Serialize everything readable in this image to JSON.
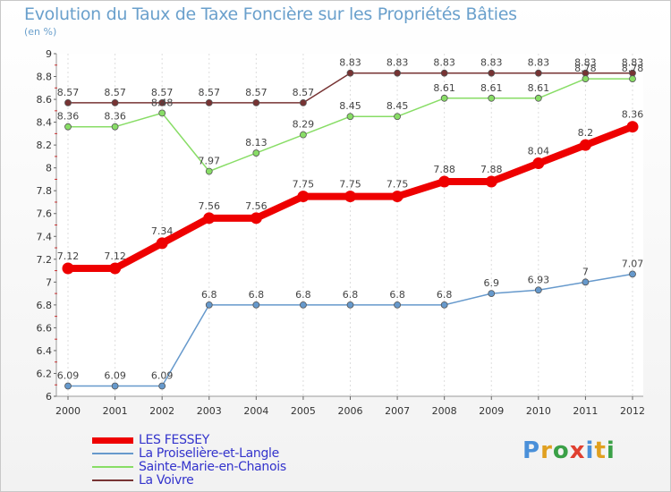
{
  "title": "Evolution du Taux de Taxe Foncière sur les Propriétés Bâties",
  "subtitle": "(en %)",
  "logo": {
    "text": "Proxiti",
    "letter_colors": [
      "#4a90d9",
      "#e0a020",
      "#3aa047",
      "#e04030",
      "#4a90d9",
      "#e0a020",
      "#3aa047"
    ]
  },
  "chart_data": {
    "type": "line",
    "title": "Evolution du Taux de Taxe Foncière sur les Propriétés Bâties",
    "ylabel": "(en %)",
    "xlabel": "",
    "x": [
      "2000",
      "2001",
      "2002",
      "2003",
      "2004",
      "2005",
      "2006",
      "2007",
      "2008",
      "2009",
      "2010",
      "2011",
      "2012"
    ],
    "ylim": [
      6,
      9
    ],
    "yticks": [
      "6",
      "6.2",
      "6.4",
      "6.6",
      "6.8",
      "7",
      "7.2",
      "7.4",
      "7.6",
      "7.8",
      "8",
      "8.2",
      "8.4",
      "8.6",
      "8.8",
      "9"
    ],
    "grid": "vertical",
    "legend_position": "bottom-left",
    "series": [
      {
        "name": "LES FESSEY",
        "color": "#ee0000",
        "weight": "thick",
        "values": [
          7.12,
          7.12,
          7.34,
          7.56,
          7.56,
          7.75,
          7.75,
          7.75,
          7.88,
          7.88,
          8.04,
          8.2,
          8.36
        ],
        "labels": [
          "7.12",
          "7.12",
          "7.34",
          "7.56",
          "7.56",
          "7.75",
          "7.75",
          "7.75",
          "7.88",
          "7.88",
          "8.04",
          "8.2",
          "8.36"
        ]
      },
      {
        "name": "La Proiselière-et-Langle",
        "color": "#6699cc",
        "weight": "thin",
        "values": [
          6.09,
          6.09,
          6.09,
          6.8,
          6.8,
          6.8,
          6.8,
          6.8,
          6.8,
          6.9,
          6.93,
          7,
          7.07
        ],
        "labels": [
          "6.09",
          "6.09",
          "6.09",
          "6.8",
          "6.8",
          "6.8",
          "6.8",
          "6.8",
          "6.8",
          "6.9",
          "6.93",
          "7",
          "7.07"
        ]
      },
      {
        "name": "Sainte-Marie-en-Chanois",
        "color": "#88dd66",
        "weight": "thin",
        "values": [
          8.36,
          8.36,
          8.48,
          7.97,
          8.13,
          8.29,
          8.45,
          8.45,
          8.61,
          8.61,
          8.61,
          8.78,
          8.78
        ],
        "labels": [
          "8.36",
          "8.36",
          "8.48",
          "7.97",
          "8.13",
          "8.29",
          "8.45",
          "8.45",
          "8.61",
          "8.61",
          "8.61",
          "8.78",
          "8.78"
        ]
      },
      {
        "name": "La Voivre",
        "color": "#773333",
        "weight": "thin",
        "values": [
          8.57,
          8.57,
          8.57,
          8.57,
          8.57,
          8.57,
          8.83,
          8.83,
          8.83,
          8.83,
          8.83,
          8.83,
          8.83
        ],
        "labels": [
          "8.57",
          "8.57",
          "8.57",
          "8.57",
          "8.57",
          "8.57",
          "8.83",
          "8.83",
          "8.83",
          "8.83",
          "8.83",
          "8.83",
          "8.83"
        ]
      }
    ]
  }
}
